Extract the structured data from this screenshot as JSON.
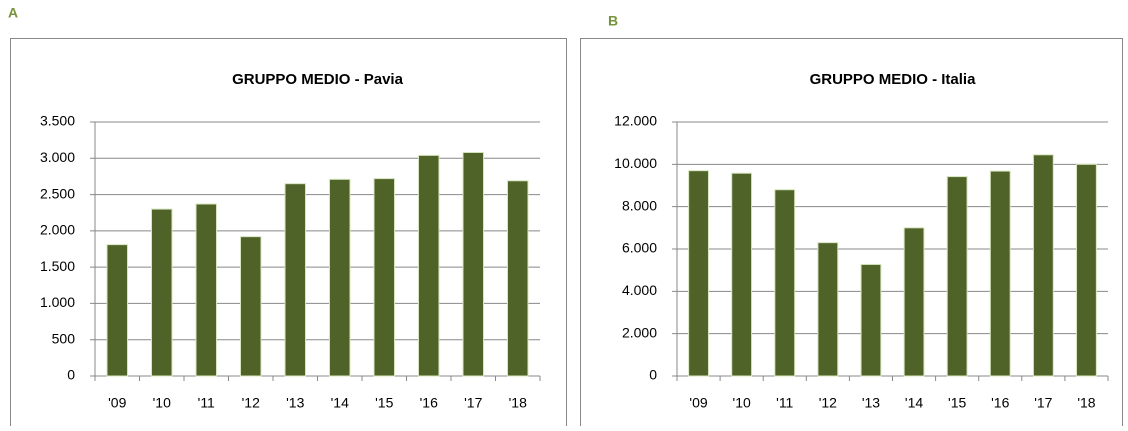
{
  "chart_data": [
    {
      "type": "bar",
      "panel": "A",
      "title": "GRUPPO MEDIO - Pavia",
      "categories": [
        "'09",
        "'10",
        "'11",
        "'12",
        "'13",
        "'14",
        "'15",
        "'16",
        "'17",
        "'18"
      ],
      "values": [
        1810,
        2300,
        2370,
        1920,
        2650,
        2710,
        2720,
        3040,
        3080,
        2690
      ],
      "color": "#4f6228",
      "ylim": [
        0,
        3500
      ],
      "yticks": [
        0,
        500,
        {
          "value": 1000,
          "label": "1.000"
        },
        {
          "value": 1500,
          "label": "1.500"
        },
        {
          "value": 2000,
          "label": "2.000"
        },
        {
          "value": 2500,
          "label": "2.500"
        },
        {
          "value": 3000,
          "label": "3.000"
        },
        {
          "value": 3500,
          "label": "3.500"
        }
      ],
      "grid": true
    },
    {
      "type": "bar",
      "panel": "B",
      "title": "GRUPPO MEDIO - Italia",
      "categories": [
        "'09",
        "'10",
        "'11",
        "'12",
        "'13",
        "'14",
        "'15",
        "'16",
        "'17",
        "'18"
      ],
      "values": [
        9700,
        9580,
        8800,
        6300,
        5270,
        7000,
        9420,
        9680,
        10450,
        10000
      ],
      "color": "#4f6228",
      "ylim": [
        0,
        12000
      ],
      "yticks": [
        0,
        {
          "value": 2000,
          "label": "2.000"
        },
        {
          "value": 4000,
          "label": "4.000"
        },
        {
          "value": 6000,
          "label": "6.000"
        },
        {
          "value": 8000,
          "label": "8.000"
        },
        {
          "value": 10000,
          "label": "10.000"
        },
        {
          "value": 12000,
          "label": "12.000"
        }
      ],
      "grid": true
    }
  ]
}
